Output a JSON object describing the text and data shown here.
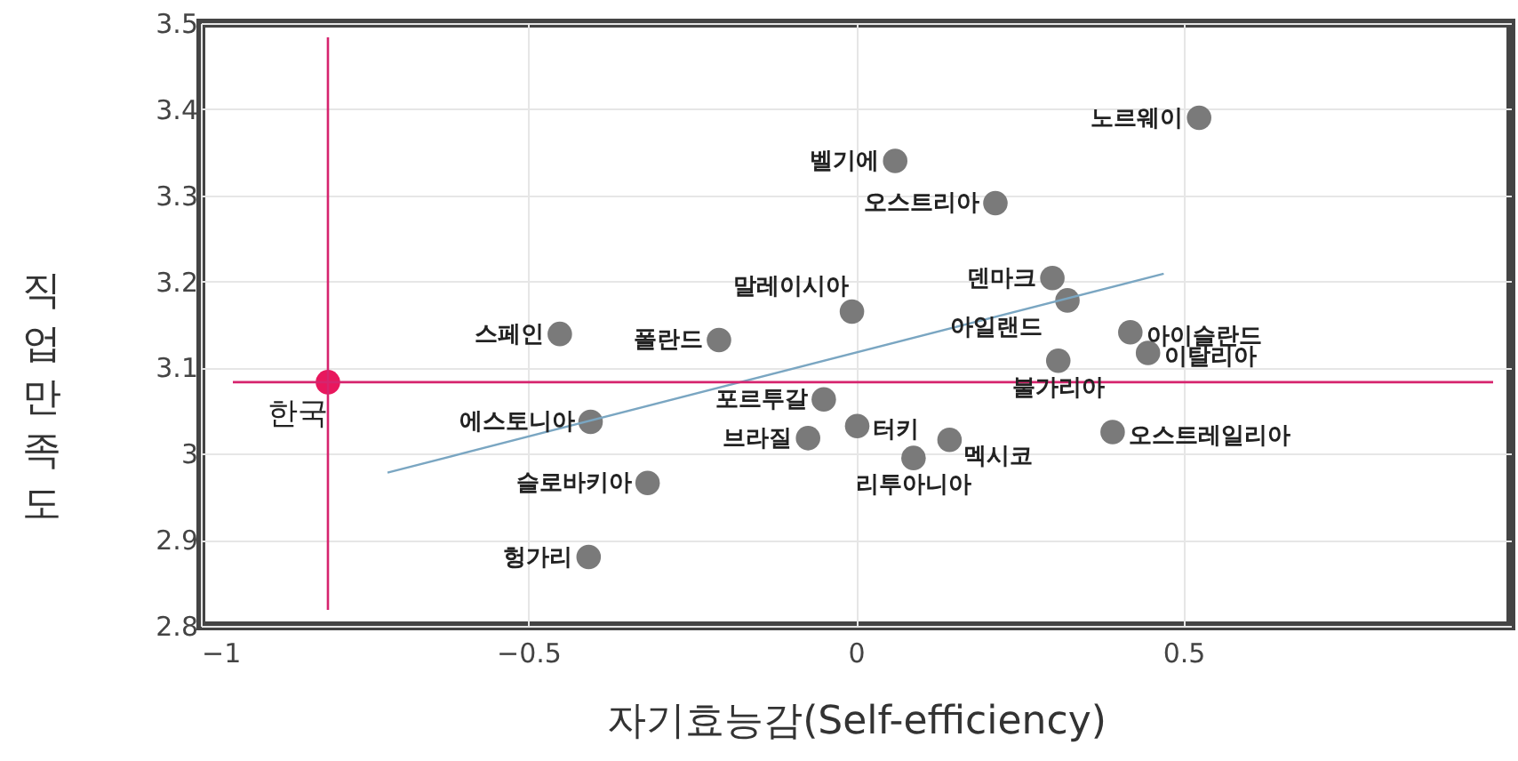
{
  "chart_data": {
    "type": "scatter",
    "xlabel": "자기효능감(Self-efficiency)",
    "ylabel": "직업만족도",
    "xlim": [
      -1,
      1
    ],
    "ylim": [
      2.8,
      3.5
    ],
    "xticks": [
      -1,
      -0.5,
      0,
      0.5
    ],
    "yticks": [
      2.8,
      2.9,
      3,
      3.1,
      3.2,
      3.3,
      3.4,
      3.5
    ],
    "grid": true,
    "marker": "circle",
    "series": [
      {
        "color": "#7a7a7a",
        "x": [
          0.524,
          0.06,
          0.213,
          -0.006,
          0.3,
          0.323,
          -0.452,
          -0.209,
          0.419,
          0.446,
          0.309,
          -0.049,
          -0.405,
          0.002,
          -0.073,
          0.143,
          0.392,
          0.088,
          -0.318,
          -0.408
        ],
        "values": [
          3.39,
          3.34,
          3.291,
          3.165,
          3.204,
          3.178,
          3.139,
          3.132,
          3.141,
          3.117,
          3.108,
          3.063,
          3.037,
          3.032,
          3.018,
          3.016,
          3.025,
          2.995,
          2.966,
          2.88
        ]
      },
      {
        "color": "#e8175d",
        "x": [
          -0.806
        ],
        "values": [
          3.083
        ]
      },
      {
        "type": "line",
        "marker": "none",
        "color": "#7aa6c2",
        "x": [
          -0.715,
          0.47
        ],
        "values": [
          2.978,
          3.209
        ]
      }
    ],
    "ref_lines": [
      {
        "axis": "x",
        "value": -0.806,
        "color": "#d6246e"
      },
      {
        "axis": "y",
        "value": 3.083,
        "color": "#d6246e"
      }
    ],
    "annotations": [
      {
        "text": "노르웨이",
        "x": 0.524,
        "y": 3.39
      },
      {
        "text": "벨기에",
        "x": 0.06,
        "y": 3.34
      },
      {
        "text": "오스트리아",
        "x": 0.213,
        "y": 3.291
      },
      {
        "text": "말레이시아",
        "x": -0.006,
        "y": 3.165
      },
      {
        "text": "덴마크",
        "x": 0.3,
        "y": 3.204
      },
      {
        "text": "아일랜드",
        "x": 0.323,
        "y": 3.178
      },
      {
        "text": "스페인",
        "x": -0.452,
        "y": 3.139
      },
      {
        "text": "폴란드",
        "x": -0.209,
        "y": 3.132
      },
      {
        "text": "아이슬란드",
        "x": 0.419,
        "y": 3.141
      },
      {
        "text": "이탈리아",
        "x": 0.446,
        "y": 3.117
      },
      {
        "text": "불가리아",
        "x": 0.309,
        "y": 3.108
      },
      {
        "text": "포르투갈",
        "x": -0.049,
        "y": 3.063
      },
      {
        "text": "에스토니아",
        "x": -0.405,
        "y": 3.037
      },
      {
        "text": "터키",
        "x": 0.002,
        "y": 3.032
      },
      {
        "text": "브라질",
        "x": -0.073,
        "y": 3.018
      },
      {
        "text": "멕시코",
        "x": 0.143,
        "y": 3.016
      },
      {
        "text": "오스트레일리아",
        "x": 0.392,
        "y": 3.025
      },
      {
        "text": "리투아니아",
        "x": 0.088,
        "y": 2.995
      },
      {
        "text": "슬로바키아",
        "x": -0.318,
        "y": 2.966
      },
      {
        "text": "헝가리",
        "x": -0.408,
        "y": 2.88
      },
      {
        "text": "한국",
        "x": -0.806,
        "y": 3.083
      }
    ]
  }
}
